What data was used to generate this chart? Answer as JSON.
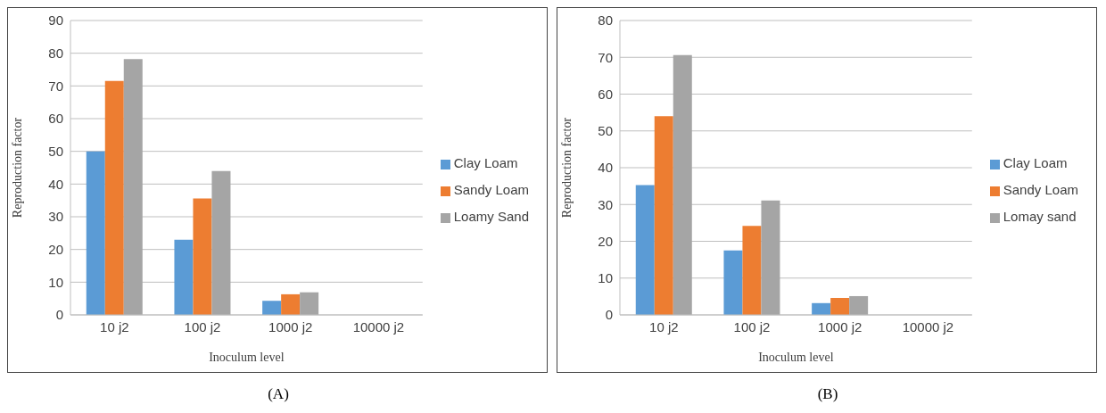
{
  "chart_data": [
    {
      "type": "bar",
      "xlabel": "Inoculum level",
      "ylabel": "Reproduction factor",
      "categories": [
        "10 j2",
        "100 j2",
        "1000 j2",
        "10000 j2"
      ],
      "series": [
        {
          "name": "Clay Loam",
          "color": "#5b9bd5",
          "values": [
            50,
            23,
            4.3,
            0
          ]
        },
        {
          "name": "Sandy Loam",
          "color": "#ed7d31",
          "values": [
            71.5,
            35.6,
            6.3,
            0
          ]
        },
        {
          "name": "Loamy Sand",
          "color": "#a5a5a5",
          "values": [
            78.2,
            44,
            6.9,
            0
          ]
        }
      ],
      "ylim": [
        0,
        90
      ],
      "yticks": [
        0,
        10,
        20,
        30,
        40,
        50,
        60,
        70,
        80,
        90
      ],
      "grid": "y",
      "legend": "right",
      "annotations": [
        "(A)"
      ]
    },
    {
      "type": "bar",
      "xlabel": "Inoculum level",
      "ylabel": "Reproduction factor",
      "categories": [
        "10 j2",
        "100 j2",
        "1000 j2",
        "10000 j2"
      ],
      "series": [
        {
          "name": "Clay Loam",
          "color": "#5b9bd5",
          "values": [
            35.3,
            17.5,
            3.2,
            0
          ]
        },
        {
          "name": "Sandy Loam",
          "color": "#ed7d31",
          "values": [
            54,
            24.2,
            4.6,
            0
          ]
        },
        {
          "name": "Lomay sand",
          "color": "#a5a5a5",
          "values": [
            70.6,
            31.1,
            5.1,
            0
          ]
        }
      ],
      "ylim": [
        0,
        80
      ],
      "yticks": [
        0,
        10,
        20,
        30,
        40,
        50,
        60,
        70,
        80
      ],
      "grid": "y",
      "legend": "right",
      "annotations": [
        "(B)"
      ]
    }
  ]
}
